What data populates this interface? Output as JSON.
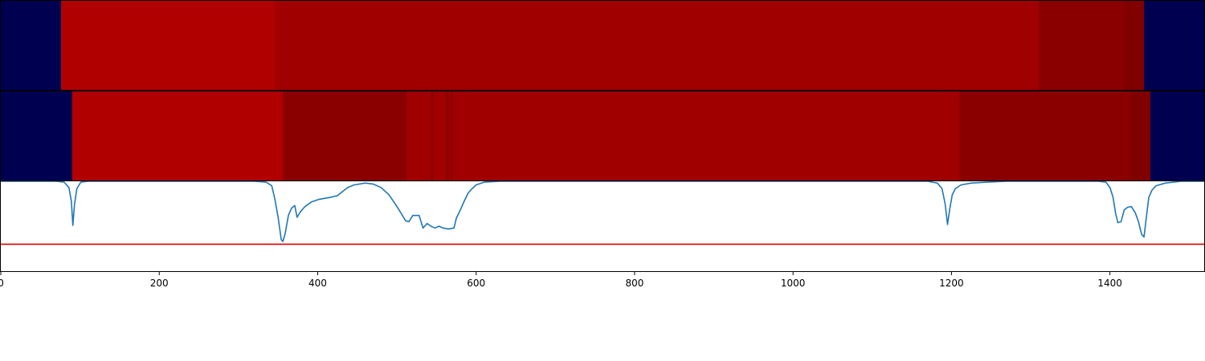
{
  "chart_data": [
    {
      "type": "heatmap",
      "name": "segmentation-row-1",
      "xlim": [
        0,
        1520
      ],
      "segments": [
        {
          "start": 0,
          "end": 76,
          "color": "#000050"
        },
        {
          "start": 76,
          "end": 346,
          "color": "#b00000"
        },
        {
          "start": 346,
          "end": 1310,
          "color": "#a00000"
        },
        {
          "start": 1310,
          "end": 1418,
          "color": "#8a0000"
        },
        {
          "start": 1418,
          "end": 1443,
          "color": "#800000"
        },
        {
          "start": 1443,
          "end": 1520,
          "color": "#000050"
        }
      ]
    },
    {
      "type": "heatmap",
      "name": "segmentation-row-2",
      "xlim": [
        0,
        1520
      ],
      "segments": [
        {
          "start": 0,
          "end": 90,
          "color": "#000050"
        },
        {
          "start": 90,
          "end": 356,
          "color": "#b00000"
        },
        {
          "start": 356,
          "end": 512,
          "color": "#8a0000"
        },
        {
          "start": 512,
          "end": 543,
          "color": "#a00000"
        },
        {
          "start": 543,
          "end": 546,
          "color": "#8a0000"
        },
        {
          "start": 546,
          "end": 562,
          "color": "#a00000"
        },
        {
          "start": 562,
          "end": 565,
          "color": "#8a0000"
        },
        {
          "start": 565,
          "end": 568,
          "color": "#a00000"
        },
        {
          "start": 568,
          "end": 570,
          "color": "#8a0000"
        },
        {
          "start": 570,
          "end": 1210,
          "color": "#a00000"
        },
        {
          "start": 1210,
          "end": 1426,
          "color": "#8a0000"
        },
        {
          "start": 1426,
          "end": 1451,
          "color": "#800000"
        },
        {
          "start": 1451,
          "end": 1520,
          "color": "#000050"
        }
      ]
    },
    {
      "type": "line",
      "name": "signal",
      "xlim": [
        0,
        1520
      ],
      "ylim": [
        0,
        1
      ],
      "x_ticks": [
        0,
        200,
        400,
        600,
        800,
        1000,
        1200,
        1400
      ],
      "x_tick_labels": [
        "0",
        "200",
        "400",
        "600",
        "800",
        "1000",
        "1200",
        "1400"
      ],
      "threshold": 0.3,
      "threshold_color": "#e00000",
      "series": [
        {
          "color": "#1f77b4",
          "points": [
            [
              0,
              1.0
            ],
            [
              70,
              1.0
            ],
            [
              80,
              0.99
            ],
            [
              86,
              0.93
            ],
            [
              89,
              0.78
            ],
            [
              91,
              0.51
            ],
            [
              93,
              0.74
            ],
            [
              96,
              0.92
            ],
            [
              101,
              0.99
            ],
            [
              110,
              1.0
            ],
            [
              320,
              1.0
            ],
            [
              335,
              0.99
            ],
            [
              342,
              0.95
            ],
            [
              346,
              0.8
            ],
            [
              350,
              0.6
            ],
            [
              354,
              0.35
            ],
            [
              356,
              0.33
            ],
            [
              359,
              0.42
            ],
            [
              363,
              0.62
            ],
            [
              367,
              0.7
            ],
            [
              371,
              0.73
            ],
            [
              374,
              0.6
            ],
            [
              378,
              0.66
            ],
            [
              384,
              0.72
            ],
            [
              392,
              0.77
            ],
            [
              402,
              0.8
            ],
            [
              415,
              0.82
            ],
            [
              425,
              0.84
            ],
            [
              432,
              0.89
            ],
            [
              438,
              0.93
            ],
            [
              446,
              0.96
            ],
            [
              460,
              0.98
            ],
            [
              470,
              0.97
            ],
            [
              480,
              0.93
            ],
            [
              490,
              0.85
            ],
            [
              500,
              0.72
            ],
            [
              507,
              0.62
            ],
            [
              511,
              0.56
            ],
            [
              515,
              0.55
            ],
            [
              520,
              0.62
            ],
            [
              528,
              0.62
            ],
            [
              533,
              0.48
            ],
            [
              538,
              0.53
            ],
            [
              543,
              0.5
            ],
            [
              548,
              0.48
            ],
            [
              553,
              0.5
            ],
            [
              558,
              0.48
            ],
            [
              565,
              0.47
            ],
            [
              572,
              0.48
            ],
            [
              575,
              0.59
            ],
            [
              580,
              0.68
            ],
            [
              585,
              0.78
            ],
            [
              590,
              0.87
            ],
            [
              595,
              0.92
            ],
            [
              600,
              0.96
            ],
            [
              610,
              0.99
            ],
            [
              630,
              1.0
            ],
            [
              1170,
              1.0
            ],
            [
              1182,
              0.98
            ],
            [
              1188,
              0.92
            ],
            [
              1192,
              0.75
            ],
            [
              1195,
              0.52
            ],
            [
              1198,
              0.7
            ],
            [
              1201,
              0.85
            ],
            [
              1205,
              0.92
            ],
            [
              1212,
              0.96
            ],
            [
              1225,
              0.98
            ],
            [
              1245,
              0.99
            ],
            [
              1270,
              1.0
            ],
            [
              1385,
              1.0
            ],
            [
              1395,
              0.99
            ],
            [
              1400,
              0.93
            ],
            [
              1404,
              0.82
            ],
            [
              1407,
              0.65
            ],
            [
              1410,
              0.54
            ],
            [
              1414,
              0.55
            ],
            [
              1418,
              0.68
            ],
            [
              1422,
              0.71
            ],
            [
              1427,
              0.72
            ],
            [
              1432,
              0.65
            ],
            [
              1436,
              0.55
            ],
            [
              1440,
              0.41
            ],
            [
              1443,
              0.38
            ],
            [
              1446,
              0.6
            ],
            [
              1449,
              0.82
            ],
            [
              1453,
              0.9
            ],
            [
              1458,
              0.95
            ],
            [
              1470,
              0.98
            ],
            [
              1490,
              1.0
            ],
            [
              1520,
              1.0
            ]
          ]
        }
      ]
    }
  ]
}
